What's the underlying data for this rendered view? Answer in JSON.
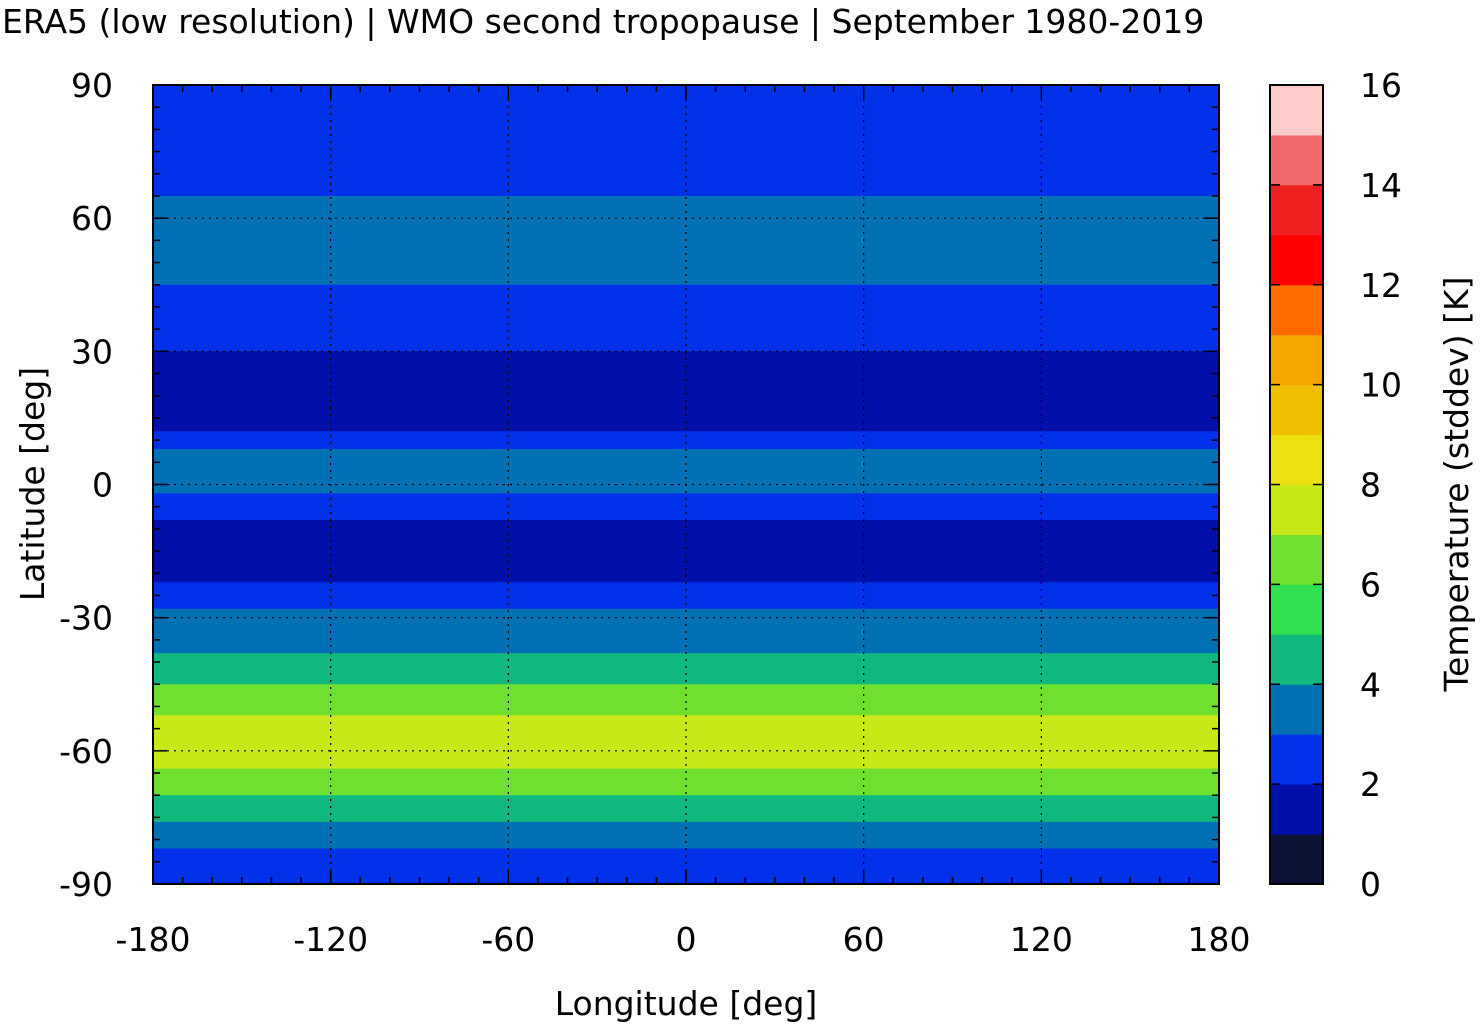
{
  "chart_data": {
    "type": "heatmap",
    "title": "ERA5 (low resolution) | WMO second tropopause | September 1980-2019",
    "xlabel": "Longitude [deg]",
    "ylabel": "Latitude [deg]",
    "xlim": [
      -180,
      180
    ],
    "ylim": [
      -90,
      90
    ],
    "xticks": [
      -180,
      -120,
      -60,
      0,
      60,
      120,
      180
    ],
    "yticks": [
      90,
      60,
      30,
      0,
      -30,
      -60,
      -90
    ],
    "grid": true,
    "colorbar": {
      "label": "Temperature (stddev) [K]",
      "range": [
        0,
        16
      ],
      "ticks": [
        0,
        2,
        4,
        6,
        8,
        10,
        12,
        14,
        16
      ],
      "step": 1,
      "colors": [
        "#0c1236",
        "#0010a8",
        "#0030e8",
        "#0070b4",
        "#10b880",
        "#30e050",
        "#70e030",
        "#c8e818",
        "#ece010",
        "#f0c000",
        "#f8a400",
        "#ff6c00",
        "#ff0000",
        "#f02020",
        "#f06868",
        "#ffcccc"
      ]
    },
    "latitude_bands": [
      {
        "lat": [
          80,
          90
        ],
        "value": 2.6
      },
      {
        "lat": [
          65,
          80
        ],
        "value": 2.8
      },
      {
        "lat": [
          45,
          65
        ],
        "value": 3.6
      },
      {
        "lat": [
          35,
          45
        ],
        "value": 2.8
      },
      {
        "lat": [
          30,
          35
        ],
        "value": 2.4
      },
      {
        "lat": [
          20,
          30
        ],
        "value": 1.6
      },
      {
        "lat": [
          12,
          20
        ],
        "value": 1.4
      },
      {
        "lat": [
          8,
          12
        ],
        "value": 2.4
      },
      {
        "lat": [
          -2,
          8
        ],
        "value": 3.6
      },
      {
        "lat": [
          -8,
          -2
        ],
        "value": 2.6
      },
      {
        "lat": [
          -15,
          -8
        ],
        "value": 1.8
      },
      {
        "lat": [
          -22,
          -15
        ],
        "value": 1.5
      },
      {
        "lat": [
          -28,
          -22
        ],
        "value": 2.4
      },
      {
        "lat": [
          -38,
          -28
        ],
        "value": 3.4
      },
      {
        "lat": [
          -45,
          -38
        ],
        "value": 4.4
      },
      {
        "lat": [
          -52,
          -45
        ],
        "value": 6.0
      },
      {
        "lat": [
          -64,
          -52
        ],
        "value": 7.6
      },
      {
        "lat": [
          -70,
          -64
        ],
        "value": 6.2
      },
      {
        "lat": [
          -76,
          -70
        ],
        "value": 4.6
      },
      {
        "lat": [
          -82,
          -76
        ],
        "value": 3.4
      },
      {
        "lat": [
          -90,
          -82
        ],
        "value": 2.6
      }
    ]
  }
}
